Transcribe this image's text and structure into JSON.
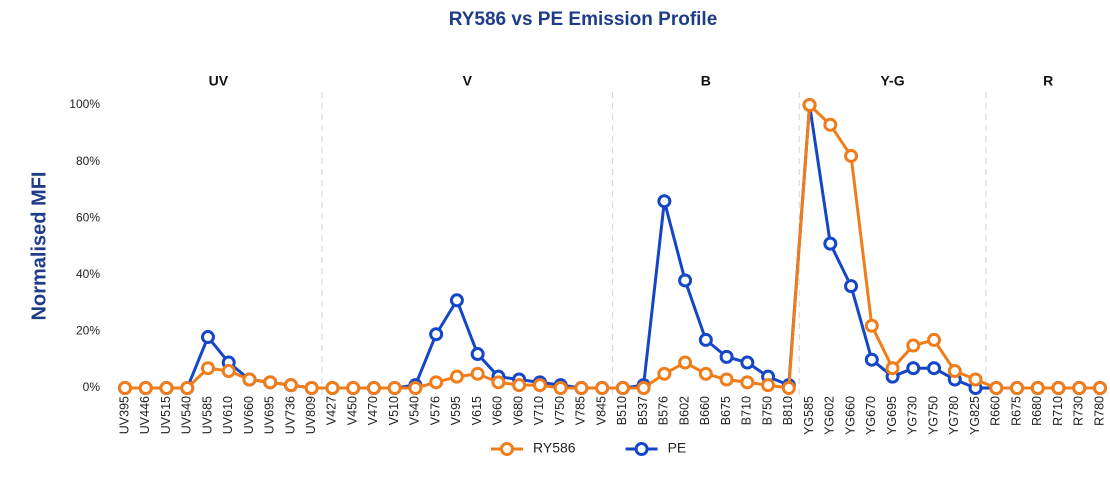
{
  "chart_data": {
    "type": "line",
    "title": "RY586 vs PE Emission Profile",
    "y_label": "Normalised MFI",
    "groups": [
      {
        "name": "UV",
        "categories": [
          "UV395",
          "UV446",
          "UV515",
          "UV540",
          "UV585",
          "UV610",
          "UV660",
          "UV695",
          "UV736",
          "UV809"
        ]
      },
      {
        "name": "V",
        "categories": [
          "V427",
          "V450",
          "V470",
          "V510",
          "V540",
          "V576",
          "V595",
          "V615",
          "V660",
          "V680",
          "V710",
          "V750",
          "V785",
          "V845"
        ]
      },
      {
        "name": "B",
        "categories": [
          "B510",
          "B537",
          "B576",
          "B602",
          "B660",
          "B675",
          "B710",
          "B750",
          "B810"
        ]
      },
      {
        "name": "Y-G",
        "categories": [
          "YG585",
          "YG602",
          "YG660",
          "YG670",
          "YG695",
          "YG730",
          "YG750",
          "YG780",
          "YG825"
        ]
      },
      {
        "name": "R",
        "categories": [
          "R660",
          "R675",
          "R680",
          "R710",
          "R730",
          "R780"
        ]
      }
    ],
    "series": [
      {
        "name": "RY586",
        "color": "#f07d1a",
        "values": [
          0,
          0,
          0,
          0,
          7,
          6,
          3,
          2,
          1,
          0,
          0,
          0,
          0,
          0,
          0,
          2,
          4,
          5,
          2,
          1,
          1,
          0,
          0,
          0,
          0,
          0,
          5,
          9,
          5,
          3,
          2,
          1,
          0,
          100,
          93,
          82,
          22,
          7,
          15,
          17,
          6,
          3,
          0,
          0,
          0,
          0,
          0,
          0
        ]
      },
      {
        "name": "PE",
        "color": "#1446c8",
        "values": [
          0,
          0,
          0,
          0,
          18,
          9,
          3,
          2,
          1,
          0,
          0,
          0,
          0,
          0,
          1,
          19,
          31,
          12,
          4,
          3,
          2,
          1,
          0,
          0,
          0,
          1,
          66,
          38,
          17,
          11,
          9,
          4,
          1,
          100,
          51,
          36,
          10,
          4,
          7,
          7,
          3,
          0,
          0,
          0,
          0,
          0,
          0,
          0
        ]
      }
    ],
    "ylim": [
      0,
      100
    ],
    "yticks": [
      {
        "value": 0,
        "label": "0%"
      },
      {
        "value": 20,
        "label": "20%"
      },
      {
        "value": 40,
        "label": "40%"
      },
      {
        "value": 60,
        "label": "60%"
      },
      {
        "value": 80,
        "label": "80%"
      },
      {
        "value": 100,
        "label": "100%"
      }
    ],
    "grid": false,
    "legend": "bottom"
  }
}
